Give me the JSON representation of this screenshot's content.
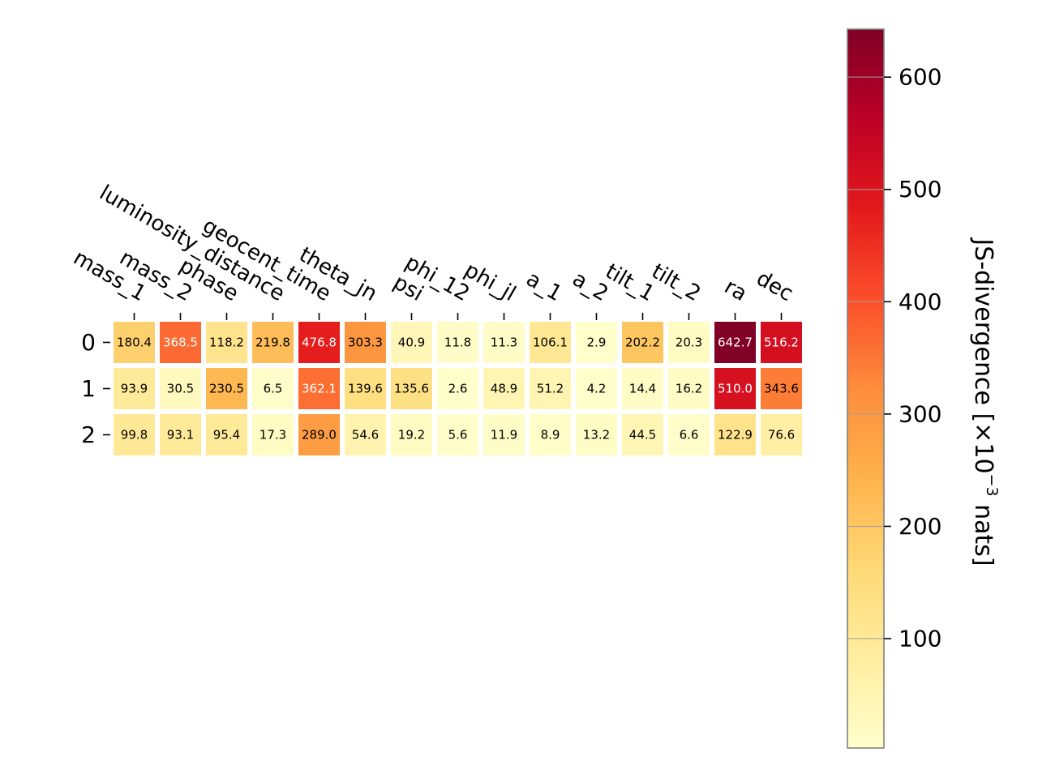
{
  "chart_data": {
    "type": "heatmap",
    "columns": [
      "mass_1",
      "mass_2",
      "phase",
      "luminosity_distance",
      "geocent_time",
      "theta_jn",
      "psi",
      "phi_12",
      "phi_jl",
      "a_1",
      "a_2",
      "tilt_1",
      "tilt_2",
      "ra",
      "dec"
    ],
    "rows": [
      "0",
      "1",
      "2"
    ],
    "values": [
      [
        180.4,
        368.5,
        118.2,
        219.8,
        476.8,
        303.3,
        40.9,
        11.8,
        11.3,
        106.1,
        2.9,
        202.2,
        20.3,
        642.7,
        516.2
      ],
      [
        93.9,
        30.5,
        230.5,
        6.5,
        362.1,
        139.6,
        135.6,
        2.6,
        48.9,
        51.2,
        4.2,
        14.4,
        16.2,
        510.0,
        343.6
      ],
      [
        99.8,
        93.1,
        95.4,
        17.3,
        289.0,
        54.6,
        19.2,
        5.6,
        11.9,
        8.9,
        13.2,
        44.5,
        6.6,
        122.9,
        76.6
      ]
    ],
    "cell_labels": [
      [
        "180.4",
        "368.5",
        "118.2",
        "219.8",
        "476.8",
        "303.3",
        "40.9",
        "11.8",
        "11.3",
        "106.1",
        "2.9",
        "202.2",
        "20.3",
        "642.7",
        "516.2"
      ],
      [
        "93.9",
        "30.5",
        "230.5",
        "6.5",
        "362.1",
        "139.6",
        "135.6",
        "2.6",
        "48.9",
        "51.2",
        "4.2",
        "14.4",
        "16.2",
        "510.0",
        "343.6"
      ],
      [
        "99.8",
        "93.1",
        "95.4",
        "17.3",
        "289.0",
        "54.6",
        "19.2",
        "5.6",
        "11.9",
        "8.9",
        "13.2",
        "44.5",
        "6.6",
        "122.9",
        "76.6"
      ]
    ],
    "colormap": "YlOrRd",
    "colormap_stops": [
      "#ffffcc",
      "#ffeda0",
      "#fed976",
      "#feb24c",
      "#fd8d3c",
      "#fc4e2a",
      "#e31a1c",
      "#bd0026",
      "#800026"
    ],
    "vmin": 2.6,
    "vmax": 642.7,
    "colorbar": {
      "ticks": [
        100,
        200,
        300,
        400,
        500,
        600
      ],
      "tick_labels": [
        "100",
        "200",
        "300",
        "400",
        "500",
        "600"
      ],
      "label": "JS-divergence [×10",
      "label_exponent": "−3",
      "label_suffix": " nats]",
      "placement": "right"
    },
    "title": "",
    "xlabel": "",
    "ylabel": ""
  }
}
